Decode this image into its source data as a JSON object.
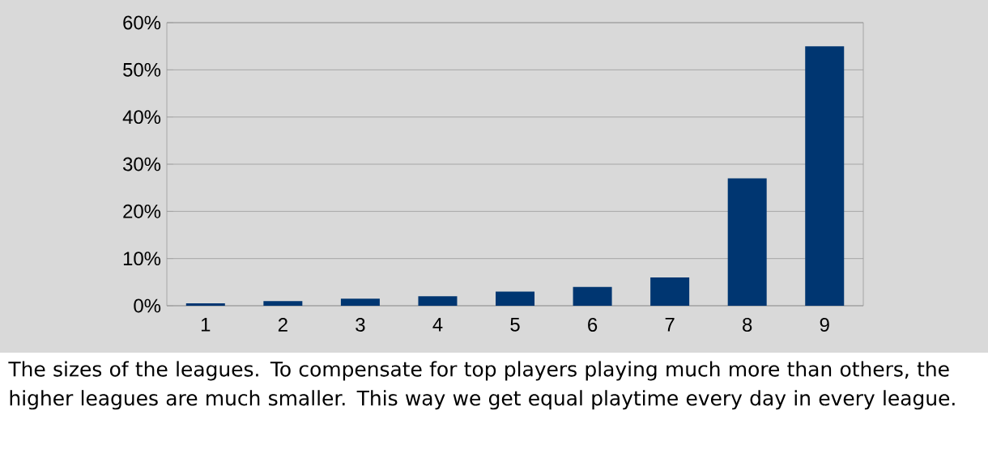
{
  "chart_data": {
    "type": "bar",
    "categories": [
      "1",
      "2",
      "3",
      "4",
      "5",
      "6",
      "7",
      "8",
      "9"
    ],
    "values": [
      0.5,
      1,
      1.5,
      2,
      3,
      4,
      6,
      27,
      55
    ],
    "color": "#003671",
    "ylim": [
      0,
      60
    ],
    "yticks": [
      {
        "value": 0,
        "label": "0%"
      },
      {
        "value": 10,
        "label": "10%"
      },
      {
        "value": 20,
        "label": "20%"
      },
      {
        "value": 30,
        "label": "30%"
      },
      {
        "value": 40,
        "label": "40%"
      },
      {
        "value": 50,
        "label": "50%"
      },
      {
        "value": 60,
        "label": "60%"
      }
    ],
    "grid": "y",
    "annotations": [
      "The sizes of the leagues. To compensate for top players playing much more than others, the higher leagues are much smaller. This way we get equal playtime every day in every league."
    ]
  }
}
